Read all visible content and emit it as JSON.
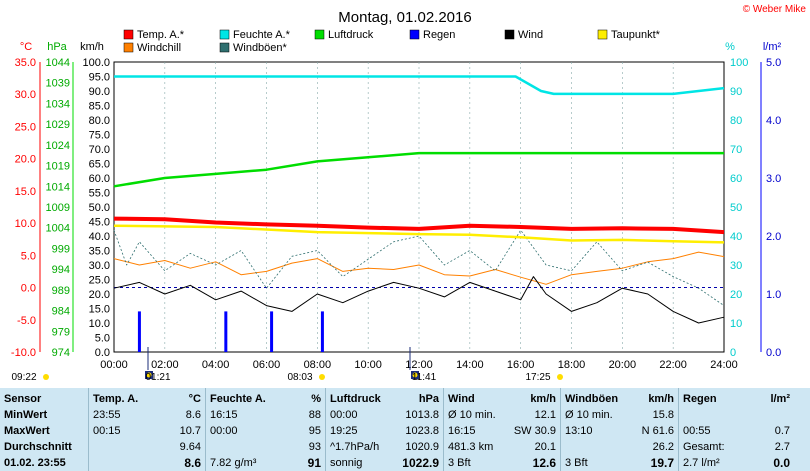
{
  "title": "Montag, 01.02.2016",
  "copyright": "© Weber Mike",
  "axis_units": {
    "temp": "°C",
    "pressure": "hPa",
    "wind": "km/h",
    "humidity": "%",
    "rain": "l/m²"
  },
  "legend": [
    {
      "label": "Temp. A.*",
      "color": "#ff0000"
    },
    {
      "label": "Feuchte A.*",
      "color": "#00e5e5"
    },
    {
      "label": "Luftdruck",
      "color": "#00dd00"
    },
    {
      "label": "Regen",
      "color": "#0000ff"
    },
    {
      "label": "Wind",
      "color": "#000000"
    },
    {
      "label": "Taupunkt*",
      "color": "#ffee00"
    },
    {
      "label": "Windchill",
      "color": "#ff8000"
    },
    {
      "label": "Windböen*",
      "color": "#2f6f6f"
    }
  ],
  "colors": {
    "temp": "#ff0000",
    "humidity": "#00e5e5",
    "pressure": "#00dd00",
    "rain": "#0000ff",
    "wind": "#000000",
    "dewpoint": "#ffee00",
    "windchill": "#ff8000",
    "gust": "#2f6f6f",
    "table_bg": "#cfe7f3"
  },
  "chart_data": {
    "type": "line",
    "x_ticks": [
      "00:00",
      "02:00",
      "04:00",
      "06:00",
      "08:00",
      "10:00",
      "12:00",
      "14:00",
      "16:00",
      "18:00",
      "20:00",
      "22:00",
      "24:00"
    ],
    "axes": {
      "temp": {
        "min": -10.0,
        "max": 35.0,
        "ticks": [
          "35.0",
          "30.0",
          "25.0",
          "20.0",
          "15.0",
          "10.0",
          "5.0",
          "0.0",
          "-5.0",
          "-10.0"
        ]
      },
      "pressure": {
        "ticks": [
          "1044",
          "1039",
          "1034",
          "1029",
          "1024",
          "1019",
          "1014",
          "1009",
          "1004",
          "999",
          "994",
          "989",
          "984",
          "979",
          "974"
        ]
      },
      "wind": {
        "min": 0,
        "max": 100,
        "ticks": [
          "100.0",
          "95.0",
          "90.0",
          "85.0",
          "80.0",
          "75.0",
          "70.0",
          "65.0",
          "60.0",
          "55.0",
          "50.0",
          "45.0",
          "40.0",
          "35.0",
          "30.0",
          "25.0",
          "20.0",
          "15.0",
          "10.0",
          "5.0",
          "0.0"
        ]
      },
      "humidity": {
        "ticks": [
          "100",
          "90",
          "80",
          "70",
          "60",
          "50",
          "40",
          "30",
          "20",
          "10",
          "0"
        ]
      },
      "rain": {
        "ticks": [
          "5.0",
          "4.0",
          "3.0",
          "2.0",
          "1.0",
          "0.0"
        ]
      }
    },
    "series": [
      {
        "key": "humidity",
        "x": [
          0,
          15.8,
          16.8,
          17.3,
          18,
          20,
          22,
          24
        ],
        "values": [
          95,
          95,
          90,
          89,
          89,
          89,
          89,
          91
        ]
      },
      {
        "key": "pressure",
        "x": [
          0,
          2,
          4,
          6,
          8,
          10,
          12,
          14,
          16,
          18,
          20,
          22,
          24
        ],
        "values": [
          1014,
          1016,
          1017,
          1018,
          1020,
          1021,
          1022,
          1022,
          1022,
          1022,
          1022,
          1022,
          1022
        ]
      },
      {
        "key": "temp",
        "x": [
          0,
          2,
          4,
          6,
          8,
          10,
          12,
          14,
          16,
          18,
          20,
          22,
          24
        ],
        "values": [
          10.7,
          10.6,
          10.1,
          9.8,
          9.6,
          9.3,
          9.1,
          9.6,
          9.4,
          9.1,
          9.2,
          9.1,
          8.6
        ]
      },
      {
        "key": "dewpoint",
        "x": [
          0,
          4,
          8,
          12,
          14,
          16,
          18,
          20,
          22,
          24
        ],
        "values": [
          9.6,
          9.4,
          8.6,
          8.3,
          8.2,
          7.8,
          7.3,
          7.4,
          7.2,
          7.0
        ]
      },
      {
        "key": "windchill",
        "x": [
          0,
          1,
          2,
          3,
          4,
          5,
          6,
          7,
          8,
          9,
          10,
          11,
          12,
          13,
          14,
          15,
          16,
          17,
          18,
          19,
          20,
          21,
          22,
          23,
          24
        ],
        "values": [
          4.5,
          3.5,
          4.2,
          3.0,
          4.0,
          2.0,
          2.5,
          3.8,
          4.5,
          2.5,
          3.0,
          2.8,
          3.5,
          2.0,
          1.8,
          2.8,
          1.6,
          0.5,
          2.0,
          2.5,
          3.0,
          4.0,
          4.5,
          5.5,
          4.8
        ]
      },
      {
        "key": "wind",
        "x": [
          0,
          1,
          2,
          3,
          4,
          5,
          6,
          7,
          8,
          9,
          10,
          11,
          12,
          13,
          14,
          15,
          16,
          16.5,
          17,
          18,
          19,
          20,
          21,
          22,
          23,
          24
        ],
        "values": [
          22,
          24,
          20,
          23,
          18,
          21,
          16,
          14,
          20,
          17,
          21,
          24,
          22,
          19,
          24,
          21,
          18,
          26,
          20,
          14,
          17,
          22,
          20,
          14,
          10,
          12
        ]
      },
      {
        "key": "gust",
        "x": [
          0,
          0.5,
          1,
          2,
          3,
          4,
          5,
          6,
          7,
          8,
          9,
          10,
          11,
          12,
          13,
          14,
          15,
          16,
          17,
          18,
          19,
          20,
          21,
          22,
          23,
          24
        ],
        "values": [
          42,
          30,
          38,
          28,
          34,
          30,
          35,
          22,
          33,
          35,
          26,
          32,
          38,
          40,
          30,
          35,
          28,
          42,
          30,
          28,
          38,
          28,
          31,
          26,
          22,
          16
        ]
      },
      {
        "key": "rain",
        "x": [
          1,
          4.4,
          6.2,
          8.2
        ],
        "values": [
          0.7,
          0.7,
          0.7,
          0.7
        ]
      }
    ],
    "markers": [
      {
        "label": "09:22",
        "kind": "sun"
      },
      {
        "label": "01:21",
        "kind": "moon"
      },
      {
        "label": "08:03",
        "kind": "sun"
      },
      {
        "label": "11:41",
        "kind": "moon"
      },
      {
        "label": "17:25",
        "kind": "sun"
      }
    ]
  },
  "table": {
    "headers": {
      "sensor": "Sensor",
      "temp": "Temp. A.",
      "temp_u": "°C",
      "hum": "Feuchte A.",
      "hum_u": "%",
      "press": "Luftdruck",
      "press_u": "hPa",
      "wind": "Wind",
      "wind_u": "km/h",
      "gust": "Windböen",
      "gust_u": "km/h",
      "rain": "Regen",
      "rain_u": "l/m²"
    },
    "min": {
      "label": "MinWert",
      "t_time": "23:55",
      "t_val": "8.6",
      "h_time": "16:15",
      "h_val": "88",
      "p_time": "00:00",
      "p_val": "1013.8",
      "w_desc": "Ø 10 min.",
      "w_val": "12.1",
      "g_desc": "Ø 10 min.",
      "g_val": "15.8"
    },
    "max": {
      "label": "MaxWert",
      "t_time": "00:15",
      "t_val": "10.7",
      "h_time": "00:00",
      "h_val": "95",
      "p_time": "19:25",
      "p_val": "1023.8",
      "w_time": "16:15",
      "w_dir": "SW 30.9",
      "g_time": "13:10",
      "g_dir": "N 61.6",
      "r_time": "00:55",
      "r_val": "0.7"
    },
    "avg": {
      "label": "Durchschnitt",
      "t_val": "9.64",
      "h_val": "93",
      "p_trend": "^1.7hPa/h",
      "p_val": "1020.9",
      "w_dist": "481.3 km",
      "w_val": "20.1",
      "g_val": "26.2",
      "r_label": "Gesamt:",
      "r_val": "2.7"
    },
    "cur": {
      "label": "01.02. 23:55",
      "t_val": "8.6",
      "h_abs": "7.82 g/m³",
      "h_val": "91",
      "p_desc": "sonnig",
      "p_val": "1022.9",
      "w_bft": "3 Bft",
      "w_val": "12.6",
      "g_bft": "3 Bft",
      "g_val": "19.7",
      "r_sum": "2.7 l/m²",
      "r_val": "0.0"
    }
  }
}
